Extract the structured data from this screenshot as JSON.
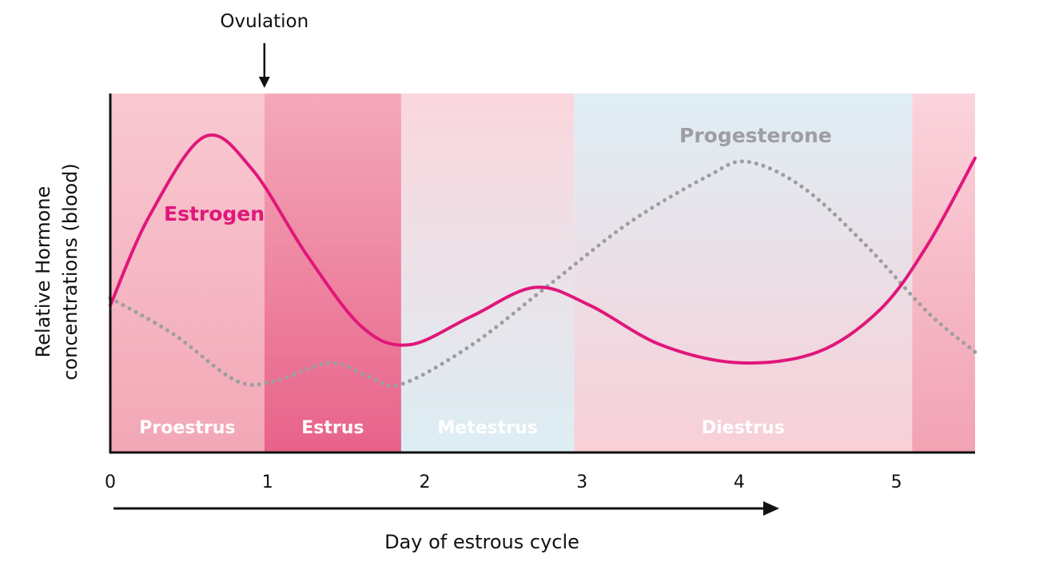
{
  "chart_data": {
    "type": "line",
    "xlabel": "Day of estrous cycle",
    "ylabel_line1": "Relative Hormone",
    "ylabel_line2": "concentrations (blood)",
    "xlim": [
      0,
      5.5
    ],
    "ylim": [
      0,
      1
    ],
    "x_ticks": [
      {
        "value": 0,
        "label": "0"
      },
      {
        "value": 1,
        "label": "1"
      },
      {
        "value": 2,
        "label": "2"
      },
      {
        "value": 3,
        "label": "3"
      },
      {
        "value": 4,
        "label": "4"
      },
      {
        "value": 5,
        "label": "5"
      }
    ],
    "phases": [
      {
        "name": "Proestrus",
        "start": 0,
        "end": 0.98,
        "color_top": "#f9c9d2",
        "color_bottom": "#f2a7b6"
      },
      {
        "name": "Estrus",
        "start": 0.98,
        "end": 1.85,
        "color_top": "#f4a9b9",
        "color_bottom": "#e8628a"
      },
      {
        "name": "Metestrus",
        "start": 1.85,
        "end": 2.95,
        "color_top": "#fbd6dd",
        "color_bottom": "#dceef4"
      },
      {
        "name": "Diestrus",
        "start": 2.95,
        "end": 5.1,
        "color_top": "#dfeef5",
        "color_bottom": "#f8cfd7"
      },
      {
        "name": "",
        "start": 5.1,
        "end": 5.5,
        "color_top": "#fbd4dc",
        "color_bottom": "#f2a2b3"
      }
    ],
    "series": [
      {
        "name": "Estrogen",
        "color": "#e0177a",
        "style": "solid",
        "points": [
          [
            0,
            0.41
          ],
          [
            0.25,
            0.66
          ],
          [
            0.6,
            0.88
          ],
          [
            0.9,
            0.79
          ],
          [
            1.25,
            0.55
          ],
          [
            1.6,
            0.35
          ],
          [
            1.9,
            0.3
          ],
          [
            2.3,
            0.38
          ],
          [
            2.7,
            0.46
          ],
          [
            3.05,
            0.41
          ],
          [
            3.5,
            0.3
          ],
          [
            4.0,
            0.25
          ],
          [
            4.5,
            0.28
          ],
          [
            4.9,
            0.4
          ],
          [
            5.2,
            0.58
          ],
          [
            5.5,
            0.82
          ]
        ]
      },
      {
        "name": "Progesterone",
        "color": "#9e9ea2",
        "style": "dotted",
        "points": [
          [
            0,
            0.43
          ],
          [
            0.4,
            0.33
          ],
          [
            0.8,
            0.2
          ],
          [
            1.05,
            0.2
          ],
          [
            1.4,
            0.25
          ],
          [
            1.65,
            0.21
          ],
          [
            1.85,
            0.19
          ],
          [
            2.3,
            0.3
          ],
          [
            2.8,
            0.47
          ],
          [
            3.3,
            0.64
          ],
          [
            3.8,
            0.77
          ],
          [
            4.05,
            0.81
          ],
          [
            4.4,
            0.74
          ],
          [
            4.8,
            0.58
          ],
          [
            5.2,
            0.39
          ],
          [
            5.5,
            0.28
          ]
        ]
      }
    ],
    "annotations": [
      {
        "text": "Ovulation",
        "x": 0.98
      }
    ]
  }
}
